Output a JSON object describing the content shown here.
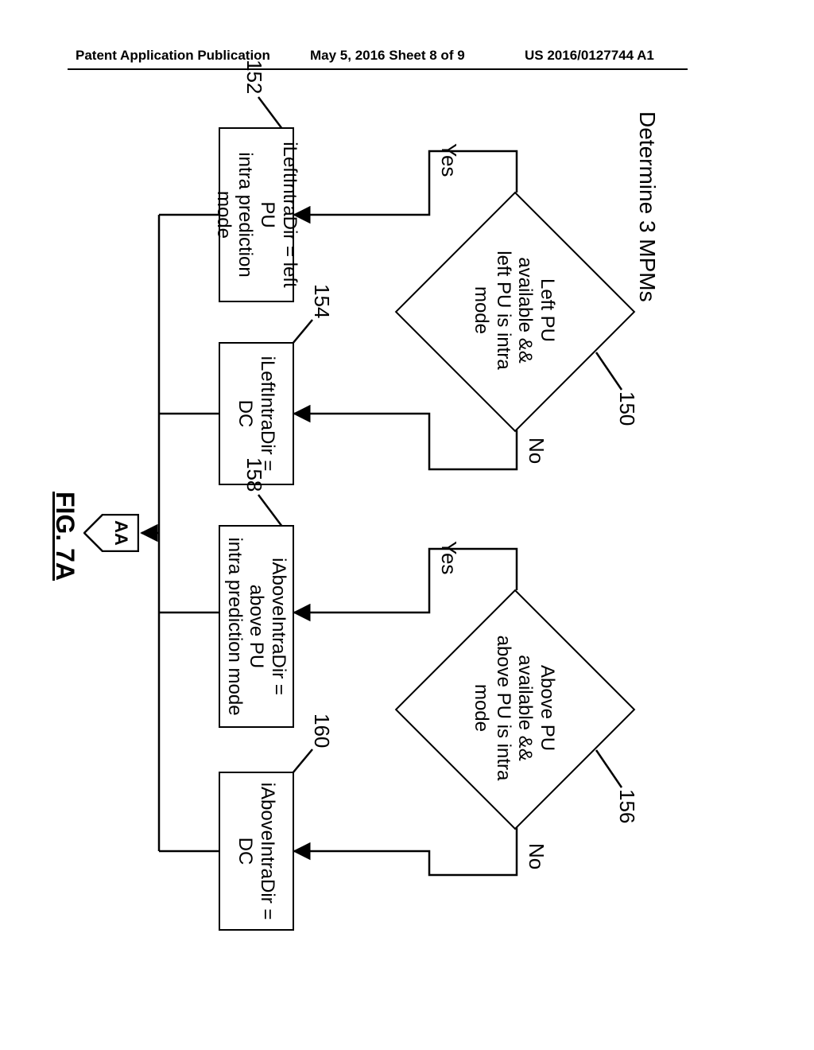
{
  "header": {
    "left": "Patent Application Publication",
    "center": "May 5, 2016  Sheet 8 of 9",
    "right": "US 2016/0127744 A1"
  },
  "diagram": {
    "type": "flowchart",
    "title": "Determine 3 MPMs",
    "figure_label": "FIG. 7A",
    "connector_label": "AA",
    "nodes": {
      "d150": {
        "kind": "decision",
        "ref": "150",
        "text": "Left PU\navailable &&\nleft PU is intra\nmode",
        "yes": "Yes",
        "no": "No"
      },
      "r152": {
        "kind": "process",
        "ref": "152",
        "text": "iLeftIntraDir = left PU\nintra prediction mode"
      },
      "r154": {
        "kind": "process",
        "ref": "154",
        "text": "iLeftIntraDir = DC"
      },
      "d156": {
        "kind": "decision",
        "ref": "156",
        "text": "Above PU\navailable &&\nabove PU is intra\nmode",
        "yes": "Yes",
        "no": "No"
      },
      "r158": {
        "kind": "process",
        "ref": "158",
        "text": "iAboveIntraDir = above PU\nintra prediction mode"
      },
      "r160": {
        "kind": "process",
        "ref": "160",
        "text": "iAboveIntraDir = DC"
      }
    },
    "colors": {
      "stroke": "#000000",
      "background": "#ffffff",
      "text": "#000000"
    },
    "line_width": 2.5,
    "font_size_node": 24,
    "font_size_ref": 26,
    "font_size_title": 28
  }
}
